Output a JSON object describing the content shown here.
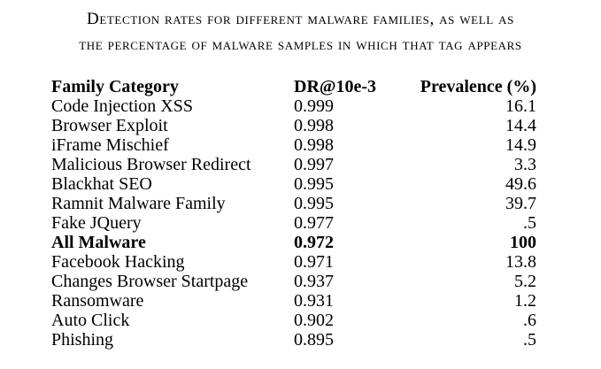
{
  "caption": {
    "line1": "Detection rates for different malware families, as well as",
    "line2": "the percentage of malware samples in which that tag appears"
  },
  "table": {
    "headers": {
      "family": "Family Category",
      "dr": "DR@10e-3",
      "prevalence": "Prevalence (%)"
    },
    "rows": [
      {
        "family": "Code Injection XSS",
        "dr": "0.999",
        "prevalence": "16.1"
      },
      {
        "family": "Browser Exploit",
        "dr": "0.998",
        "prevalence": "14.4"
      },
      {
        "family": "iFrame Mischief",
        "dr": "0.998",
        "prevalence": "14.9"
      },
      {
        "family": "Malicious Browser Redirect",
        "dr": "0.997",
        "prevalence": "3.3"
      },
      {
        "family": "Blackhat SEO",
        "dr": "0.995",
        "prevalence": "49.6"
      },
      {
        "family": "Ramnit Malware Family",
        "dr": "0.995",
        "prevalence": "39.7"
      },
      {
        "family": "Fake JQuery",
        "dr": "0.977",
        "prevalence": ".5"
      },
      {
        "family": "All Malware",
        "dr": "0.972",
        "prevalence": "100"
      },
      {
        "family": "Facebook Hacking",
        "dr": "0.971",
        "prevalence": "13.8"
      },
      {
        "family": "Changes Browser Startpage",
        "dr": "0.937",
        "prevalence": "5.2"
      },
      {
        "family": "Ransomware",
        "dr": "0.931",
        "prevalence": "1.2"
      },
      {
        "family": "Auto Click",
        "dr": "0.902",
        "prevalence": ".6"
      },
      {
        "family": "Phishing",
        "dr": "0.895",
        "prevalence": ".5"
      }
    ]
  }
}
